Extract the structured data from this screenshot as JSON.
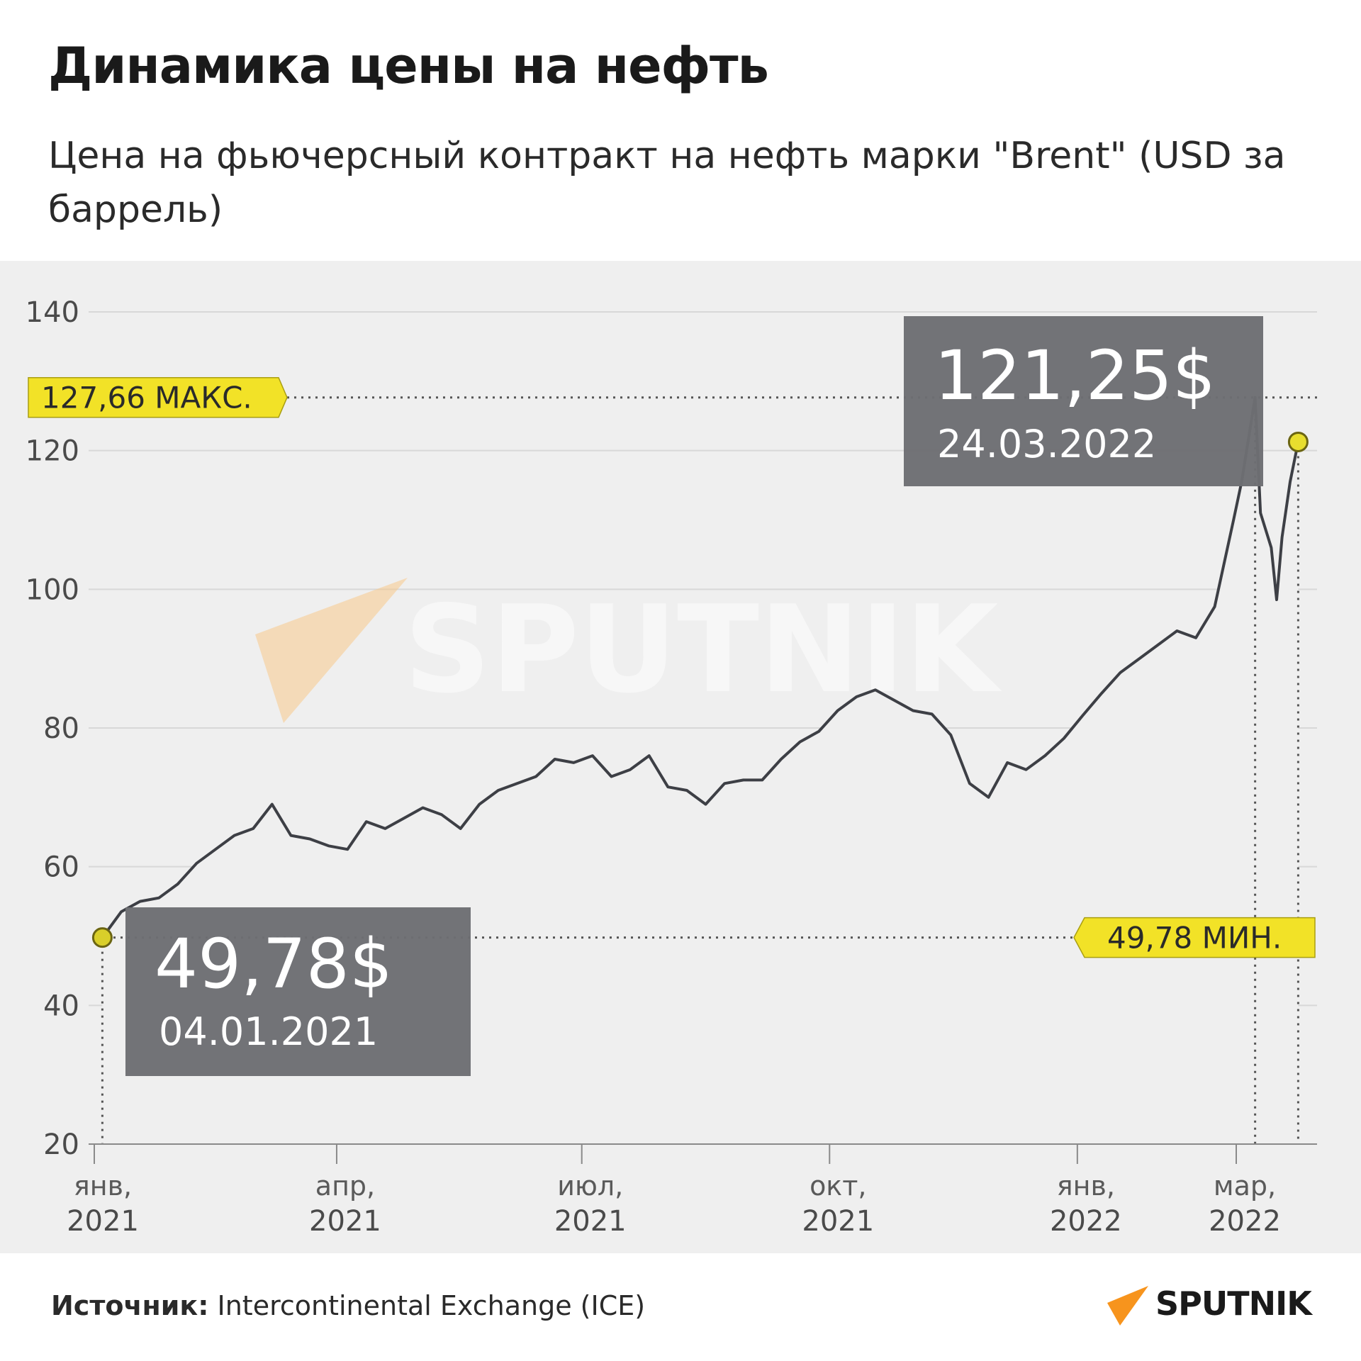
{
  "title": "Динамика цены на нефть",
  "subtitle": "Цена на фьючерсный контракт на нефть марки \"Brent\" (USD за баррель)",
  "source_label": "Источник:",
  "source_value": " Intercontinental Exchange (ICE)",
  "logo_text": "SPUTNIK",
  "watermark_text": "SPUTNIK",
  "colors": {
    "accent": "#f2e227",
    "area": "#5c5e66",
    "line": "#3d3f45",
    "panel": "#efefef",
    "box": "#6d6e73",
    "logo_orange": "#f7941d"
  },
  "chart_data": {
    "type": "area",
    "ylim": [
      20,
      140
    ],
    "yticks": [
      20,
      40,
      60,
      80,
      100,
      120,
      140
    ],
    "xlim": [
      "2021-01-01",
      "2022-03-31"
    ],
    "xticks": [
      {
        "date": "2021-01-01",
        "line1": "янв,",
        "line2": "2021"
      },
      {
        "date": "2021-04-01",
        "line1": "апр,",
        "line2": "2021"
      },
      {
        "date": "2021-07-01",
        "line1": "июл,",
        "line2": "2021"
      },
      {
        "date": "2021-10-01",
        "line1": "окт,",
        "line2": "2021"
      },
      {
        "date": "2022-01-01",
        "line1": "янв,",
        "line2": "2022"
      },
      {
        "date": "2022-03-01",
        "line1": "мар,",
        "line2": "2022"
      }
    ],
    "grid": true,
    "series": [
      {
        "x": [
          "2021-01-04",
          "2021-01-11",
          "2021-01-18",
          "2021-01-25",
          "2021-02-01",
          "2021-02-08",
          "2021-02-15",
          "2021-02-22",
          "2021-03-01",
          "2021-03-08",
          "2021-03-15",
          "2021-03-22",
          "2021-03-29",
          "2021-04-05",
          "2021-04-12",
          "2021-04-19",
          "2021-04-26",
          "2021-05-03",
          "2021-05-10",
          "2021-05-17",
          "2021-05-24",
          "2021-05-31",
          "2021-06-07",
          "2021-06-14",
          "2021-06-21",
          "2021-06-28",
          "2021-07-05",
          "2021-07-12",
          "2021-07-19",
          "2021-07-26",
          "2021-08-02",
          "2021-08-09",
          "2021-08-16",
          "2021-08-23",
          "2021-08-30",
          "2021-09-06",
          "2021-09-13",
          "2021-09-20",
          "2021-09-27",
          "2021-10-04",
          "2021-10-11",
          "2021-10-18",
          "2021-10-25",
          "2021-11-01",
          "2021-11-08",
          "2021-11-15",
          "2021-11-22",
          "2021-11-29",
          "2021-12-06",
          "2021-12-13",
          "2021-12-20",
          "2021-12-27",
          "2022-01-03",
          "2022-01-10",
          "2022-01-17",
          "2022-01-24",
          "2022-01-31",
          "2022-02-07",
          "2022-02-14",
          "2022-02-21",
          "2022-02-28",
          "2022-03-03",
          "2022-03-08",
          "2022-03-10",
          "2022-03-14",
          "2022-03-16",
          "2022-03-18",
          "2022-03-21",
          "2022-03-24"
        ],
        "values": [
          49.78,
          53.5,
          55.0,
          55.5,
          57.5,
          60.5,
          62.5,
          64.5,
          65.5,
          69.0,
          64.5,
          64.0,
          63.0,
          62.5,
          66.5,
          65.5,
          67.0,
          68.5,
          67.5,
          65.5,
          69.0,
          71.0,
          72.0,
          73.0,
          75.5,
          75.0,
          76.0,
          73.0,
          74.0,
          76.0,
          71.5,
          71.0,
          69.0,
          72.0,
          72.5,
          72.5,
          75.5,
          78.0,
          79.5,
          82.5,
          84.5,
          85.5,
          84.0,
          82.5,
          82.0,
          79.0,
          72.0,
          70.0,
          75.0,
          74.0,
          76.0,
          78.5,
          81.8,
          85.0,
          88.0,
          90.0,
          92.0,
          94.0,
          93.0,
          97.5,
          110.0,
          115.5,
          127.66,
          111.0,
          106.0,
          98.5,
          107.5,
          115.5,
          121.25
        ]
      }
    ],
    "max_label": "127,66 МАКС.",
    "max_value": 127.66,
    "min_label": "49,78  МИН.",
    "min_value": 49.78,
    "start_point": {
      "date": "2021-01-04",
      "value": 49.78,
      "price_label": "49,78$",
      "date_label": "04.01.2021"
    },
    "end_point": {
      "date": "2022-03-24",
      "value": 121.25,
      "price_label": "121,25$",
      "date_label": "24.03.2022"
    },
    "max_point_date": "2022-03-08"
  }
}
